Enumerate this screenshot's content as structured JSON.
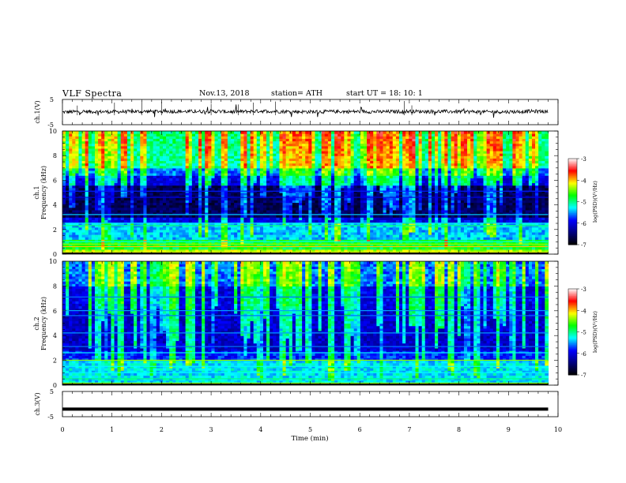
{
  "header": {
    "title": "VLF  Spectra",
    "date": "Nov.13, 2018",
    "station": "station= ATH",
    "start": "start  UT  =    18: 10: 1"
  },
  "colorbar": {
    "label": "log(PSD)(V²/Hz)",
    "ticks": [
      "-3",
      "-4",
      "-5",
      "-6",
      "-7"
    ],
    "stops": [
      "#ffffff",
      "#ff0000",
      "#ffff00",
      "#00ff00",
      "#00ffff",
      "#0000ff",
      "#000080",
      "#000000"
    ]
  },
  "chart_data": [
    {
      "type": "line",
      "panel": "ch1-waveform",
      "ylabel": "ch.1(V)",
      "ylim": [
        -5,
        5
      ],
      "yticks": [
        "5",
        "-5"
      ],
      "xlim": [
        0,
        10
      ],
      "series": [
        {
          "x": [
            0,
            0.5,
            1,
            1.5,
            2,
            2.5,
            3,
            3.5,
            4,
            4.5,
            5,
            5.5,
            6,
            6.5,
            7,
            7.5,
            8,
            8.5,
            9,
            9.5,
            9.8
          ],
          "values": [
            0,
            0.2,
            0.1,
            0.2,
            0.3,
            0.2,
            0.3,
            0.1,
            0.4,
            0.2,
            0.1,
            0.2,
            0.2,
            0.1,
            0.3,
            0.2,
            0.2,
            0.1,
            0.1,
            0.3,
            0.2
          ]
        }
      ]
    },
    {
      "type": "heatmap",
      "panel": "ch1-spectrogram",
      "ylabel": "ch.1\nFrequency  (kHz)",
      "ylim": [
        0,
        10
      ],
      "yticks": [
        "0",
        "2",
        "4",
        "6",
        "8",
        "10"
      ],
      "xlim": [
        0,
        10
      ],
      "data_end_min": 9.8,
      "z_range": [
        -7,
        -3
      ]
    },
    {
      "type": "heatmap",
      "panel": "ch2-spectrogram",
      "ylabel": "ch.2\nFrequency  (kHz)",
      "ylim": [
        0,
        10
      ],
      "yticks": [
        "0",
        "2",
        "4",
        "6",
        "8",
        "10"
      ],
      "xlim": [
        0,
        10
      ],
      "data_end_min": 9.8,
      "z_range": [
        -7,
        -3
      ]
    },
    {
      "type": "line",
      "panel": "ch3-waveform",
      "ylabel": "ch.3(V)",
      "ylim": [
        -5,
        5
      ],
      "yticks": [
        "5",
        "-5"
      ],
      "xlim": [
        0,
        10
      ],
      "xlabel": "Time  (min)",
      "xticks": [
        "0",
        "1",
        "2",
        "3",
        "4",
        "5",
        "6",
        "7",
        "8",
        "9",
        "10"
      ],
      "series": [
        {
          "x": [
            0,
            9.8
          ],
          "values": [
            -2,
            -2
          ]
        }
      ]
    }
  ]
}
